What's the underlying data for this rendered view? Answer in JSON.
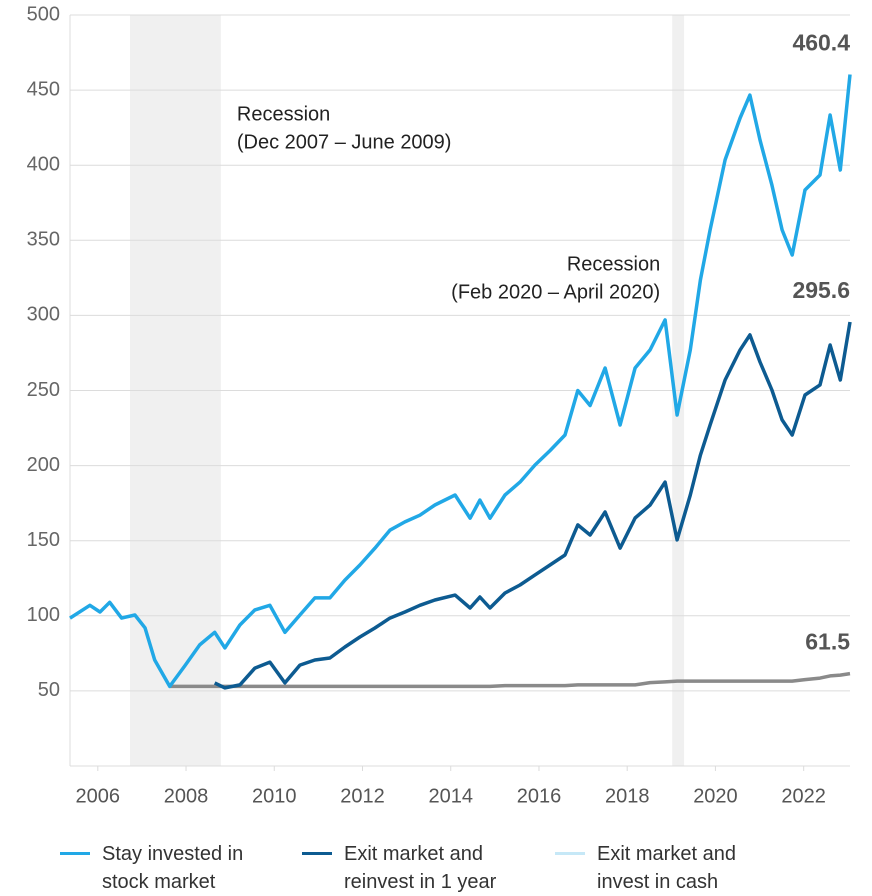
{
  "chart_data": {
    "type": "line",
    "x": [
      2005.37,
      2005.82,
      2006.05,
      2006.27,
      2006.54,
      2006.84,
      2007.07,
      2007.29,
      2007.63,
      2007.97,
      2008.31,
      2008.65,
      2008.88,
      2009.22,
      2009.56,
      2009.9,
      2010.24,
      2010.58,
      2010.92,
      2011.26,
      2011.6,
      2011.94,
      2012.28,
      2012.62,
      2012.96,
      2013.3,
      2013.64,
      2014.1,
      2014.44,
      2014.66,
      2014.89,
      2015.23,
      2015.57,
      2015.91,
      2016.25,
      2016.59,
      2016.88,
      2017.16,
      2017.5,
      2017.84,
      2018.18,
      2018.52,
      2018.86,
      2019.13,
      2019.43,
      2019.66,
      2019.88,
      2020.22,
      2020.56,
      2020.78,
      2021.01,
      2021.28,
      2021.51,
      2021.74,
      2022.03,
      2022.37,
      2022.6,
      2022.83,
      2023.05
    ],
    "xlim": [
      2005.37,
      2023.05
    ],
    "xticks": [
      2006,
      2008,
      2010,
      2012,
      2014,
      2016,
      2018,
      2020,
      2022
    ],
    "ylim": [
      0,
      500
    ],
    "yticks": [
      50,
      100,
      150,
      200,
      250,
      300,
      350,
      400,
      450,
      500
    ],
    "grid": true,
    "shade_color": "#f0f0f0",
    "recessions": [
      {
        "label": [
          "Recession",
          "(Dec 2007 – June 2009)"
        ],
        "start": 2006.73,
        "end": 2008.79,
        "label_side": "right"
      },
      {
        "label": [
          "Recession",
          "(Feb 2020 – April 2020)"
        ],
        "start": 2019.02,
        "end": 2019.29,
        "label_side": "left"
      }
    ],
    "series": [
      {
        "name": "Stay invested in stock market",
        "color": "#21a8e6",
        "values": [
          98.5,
          107,
          102.5,
          109,
          98.5,
          100.5,
          92,
          70.6,
          53,
          66.6,
          80.6,
          89,
          78.6,
          93.9,
          103.9,
          107,
          89,
          100.5,
          111.9,
          111.9,
          123.8,
          133.8,
          145,
          157,
          162.5,
          167,
          173.8,
          180.4,
          165,
          177,
          165,
          180.4,
          189,
          200.4,
          210,
          220.4,
          250,
          240,
          265,
          227,
          265,
          277,
          297,
          233.7,
          277,
          323.6,
          356.9,
          403.5,
          431.4,
          446.7,
          416.8,
          386.8,
          356.9,
          340.2,
          383.5,
          393.5,
          433.4,
          396.8,
          460.4
        ]
      },
      {
        "name": "Exit market and reinvest in 1 year",
        "color": "#0d5b91",
        "values": [
          null,
          null,
          null,
          null,
          null,
          null,
          null,
          null,
          null,
          null,
          null,
          55.3,
          52,
          54,
          65.2,
          69.2,
          55.3,
          67.2,
          70.6,
          71.9,
          79.2,
          85.9,
          91.9,
          98.5,
          102.5,
          107,
          110.5,
          113.8,
          105.2,
          112.5,
          105.2,
          115.2,
          120.5,
          127.2,
          133.8,
          140.5,
          160.5,
          153.8,
          169.1,
          145.1,
          165.1,
          173.8,
          189,
          150.5,
          180.4,
          207,
          227,
          257,
          277,
          287,
          269,
          250.3,
          230.4,
          220.4,
          247,
          253.7,
          280.3,
          257,
          295.6
        ]
      },
      {
        "name": "Exit market and invest in cash",
        "color": "#c6e8f7",
        "line_color": "#8a8a8a",
        "values": [
          null,
          null,
          null,
          null,
          null,
          null,
          null,
          null,
          53,
          53,
          53,
          53,
          53,
          53,
          53,
          53,
          53,
          53,
          53,
          53,
          53,
          53,
          53,
          53,
          53,
          53,
          53,
          53,
          53,
          53,
          53,
          53.5,
          53.5,
          53.5,
          53.5,
          53.5,
          54,
          54,
          54,
          54,
          54,
          55.5,
          56,
          56.5,
          56.5,
          56.5,
          56.5,
          56.5,
          56.5,
          56.5,
          56.5,
          56.5,
          56.5,
          56.5,
          57.5,
          58.5,
          60,
          60.5,
          61.5
        ]
      }
    ]
  }
}
